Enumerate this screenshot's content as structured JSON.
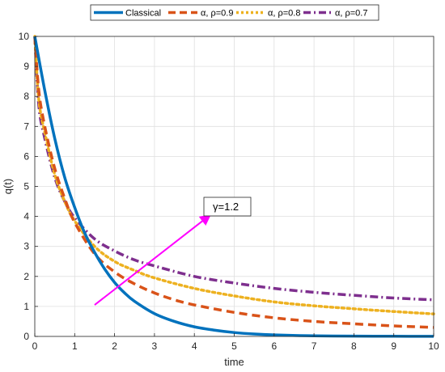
{
  "chart_data": {
    "type": "line",
    "xlabel": "time",
    "ylabel": "q(t)",
    "xlim": [
      0,
      10
    ],
    "ylim": [
      0,
      10
    ],
    "xticks": [
      "0",
      "1",
      "2",
      "3",
      "4",
      "5",
      "6",
      "7",
      "8",
      "9",
      "10"
    ],
    "yticks": [
      "0",
      "1",
      "2",
      "3",
      "4",
      "5",
      "6",
      "7",
      "8",
      "9",
      "10"
    ],
    "grid": true,
    "legend": {
      "placement": "top-outside",
      "orientation": "horizontal",
      "entries": [
        "Classical",
        "α, ρ=0.9",
        "α, ρ=0.8",
        "α, ρ=0.7"
      ]
    },
    "series": [
      {
        "name": "Classical",
        "color": "#0072BD",
        "style": "solid",
        "x": [
          0,
          0.25,
          0.5,
          0.75,
          1,
          1.25,
          1.5,
          1.75,
          2,
          2.25,
          2.5,
          3,
          3.5,
          4,
          4.5,
          5,
          5.5,
          6,
          7,
          8,
          9,
          10
        ],
        "y": [
          10,
          8.2,
          6.6,
          5.3,
          4.3,
          3.45,
          2.8,
          2.25,
          1.8,
          1.45,
          1.17,
          0.76,
          0.5,
          0.32,
          0.21,
          0.13,
          0.08,
          0.05,
          0.02,
          0.01,
          0.005,
          0.003
        ]
      },
      {
        "name": "α, ρ=0.9",
        "color": "#D95319",
        "style": "dashed",
        "x": [
          0,
          0.1,
          0.25,
          0.5,
          0.75,
          1,
          1.5,
          2,
          2.5,
          3,
          3.5,
          4,
          5,
          6,
          7,
          8,
          9,
          10
        ],
        "y": [
          10,
          8.2,
          7.0,
          5.6,
          4.6,
          3.8,
          2.75,
          2.15,
          1.75,
          1.45,
          1.22,
          1.05,
          0.8,
          0.62,
          0.5,
          0.42,
          0.35,
          0.3
        ]
      },
      {
        "name": "α, ρ=0.8",
        "color": "#EDB120",
        "style": "dotted",
        "x": [
          0,
          0.1,
          0.25,
          0.5,
          0.75,
          1,
          1.5,
          2,
          2.5,
          3,
          4,
          5,
          6,
          7,
          8,
          9,
          10
        ],
        "y": [
          10,
          7.9,
          6.8,
          5.4,
          4.5,
          3.85,
          3.0,
          2.5,
          2.2,
          1.95,
          1.6,
          1.35,
          1.15,
          1.02,
          0.92,
          0.83,
          0.75
        ]
      },
      {
        "name": "α, ρ=0.7",
        "color": "#7E2F8E",
        "style": "dashdot",
        "x": [
          0,
          0.1,
          0.25,
          0.5,
          0.75,
          1,
          1.5,
          2,
          2.5,
          3,
          4,
          5,
          6,
          7,
          8,
          9,
          10
        ],
        "y": [
          10,
          7.7,
          6.6,
          5.3,
          4.5,
          3.95,
          3.25,
          2.85,
          2.55,
          2.35,
          2.0,
          1.78,
          1.6,
          1.47,
          1.37,
          1.28,
          1.22
        ]
      }
    ],
    "annotation": {
      "text": "γ=1.2",
      "arrow_color": "#FF00FF",
      "arrow_from": [
        1.5,
        1.05
      ],
      "arrow_to": [
        4.4,
        4.05
      ]
    }
  }
}
